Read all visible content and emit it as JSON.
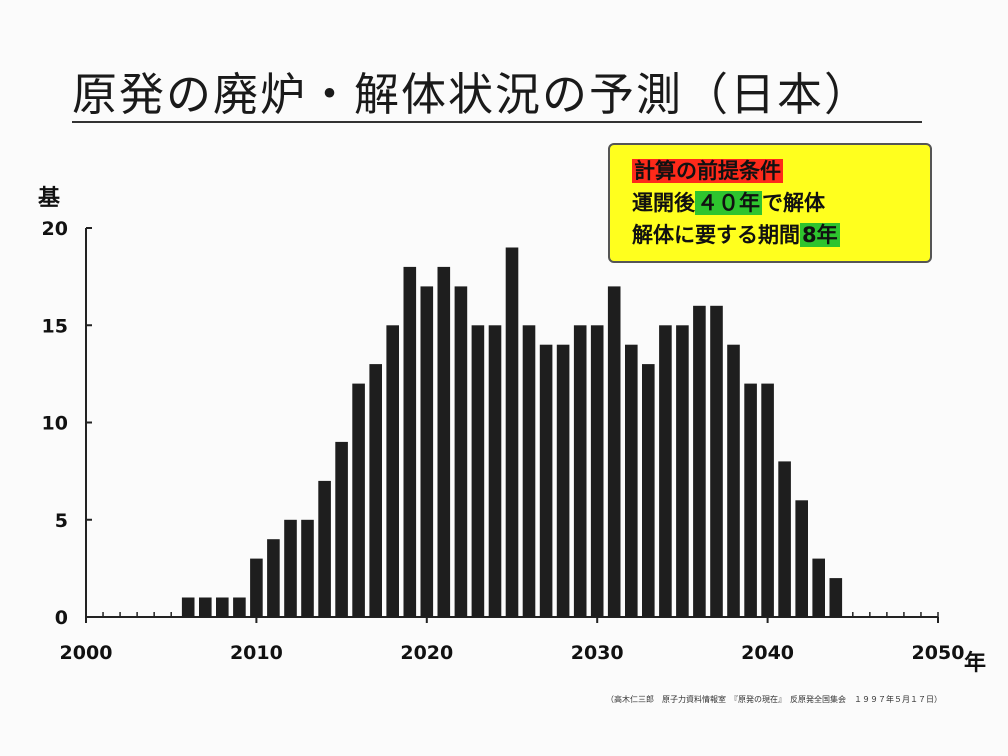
{
  "title": "原発の廃炉・解体状況の予測（日本）",
  "legend_box": {
    "heading": "計算の前提条件",
    "line1_prefix": "運開後",
    "line1_highlight": "４０年",
    "line1_suffix": "で解体",
    "line2_prefix": "解体に要する期間",
    "line2_highlight": "8年"
  },
  "credit": "（高木仁三郎　原子力資料情報室　『原発の現在』　反原発全国集会　１９９７年５月１７日）",
  "colors": {
    "bar": "#1e1e1e",
    "legend_bg": "#ffff1e",
    "highlight_red": "#ff2a1a",
    "highlight_green": "#2ec42e"
  },
  "chart_data": {
    "type": "bar",
    "ylabel": "基",
    "xunit": "年",
    "ylim": [
      0,
      20
    ],
    "yticks": [
      0,
      5,
      10,
      15,
      20
    ],
    "xlim": [
      2000,
      2050
    ],
    "xticks": [
      2000,
      2010,
      2020,
      2030,
      2040,
      2050
    ],
    "grid": false,
    "x": [
      2006,
      2007,
      2008,
      2009,
      2010,
      2011,
      2012,
      2013,
      2014,
      2015,
      2016,
      2017,
      2018,
      2019,
      2020,
      2021,
      2022,
      2023,
      2024,
      2025,
      2026,
      2027,
      2028,
      2029,
      2030,
      2031,
      2032,
      2033,
      2034,
      2035,
      2036,
      2037,
      2038,
      2039,
      2040,
      2041,
      2042,
      2043,
      2044
    ],
    "values": [
      1,
      1,
      1,
      1,
      3,
      4,
      5,
      5,
      7,
      9,
      12,
      13,
      15,
      18,
      17,
      18,
      17,
      15,
      15,
      19,
      15,
      14,
      14,
      15,
      15,
      17,
      14,
      13,
      15,
      15,
      16,
      16,
      14,
      12,
      12,
      8,
      6,
      3,
      2
    ]
  }
}
